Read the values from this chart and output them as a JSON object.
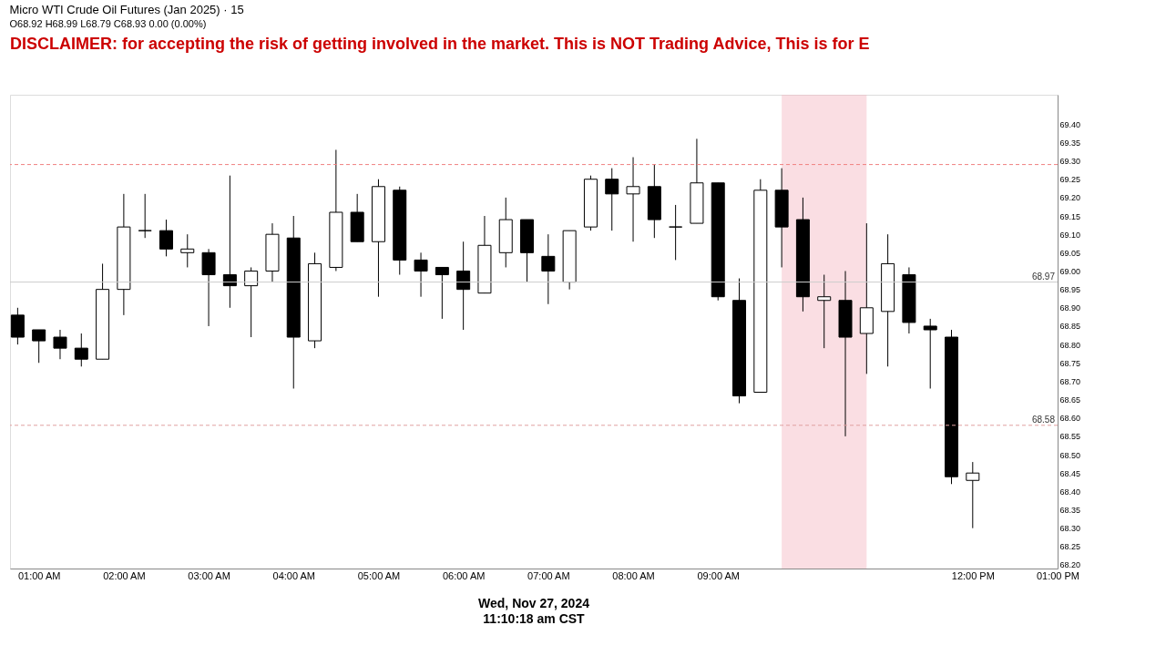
{
  "chart_data": {
    "type": "candlestick",
    "title": "Micro WTI Crude Oil Futures (Jan 2025) · 15",
    "subtitle": "O68.92 H68.99 L68.79 C68.93 0.00 (0.00%)",
    "x": [
      0.75,
      1.0,
      1.25,
      1.5,
      1.75,
      2.0,
      2.25,
      2.5,
      2.75,
      3.0,
      3.25,
      3.5,
      3.75,
      4.0,
      4.25,
      4.5,
      4.75,
      5.0,
      5.25,
      5.5,
      5.75,
      6.0,
      6.25,
      6.5,
      6.75,
      7.0,
      7.25,
      7.5,
      7.75,
      8.0,
      8.25,
      8.5,
      8.75,
      9.0,
      9.25,
      9.5,
      9.75,
      10.0,
      10.25,
      10.5,
      10.75,
      11.0,
      11.25,
      11.5,
      11.75,
      12.0
    ],
    "ohlc": [
      [
        68.88,
        68.9,
        68.8,
        68.82
      ],
      [
        68.84,
        68.84,
        68.75,
        68.81
      ],
      [
        68.82,
        68.84,
        68.76,
        68.79
      ],
      [
        68.79,
        68.83,
        68.74,
        68.76
      ],
      [
        68.76,
        69.02,
        68.76,
        68.95
      ],
      [
        68.95,
        69.21,
        68.88,
        69.12
      ],
      [
        69.11,
        69.21,
        69.09,
        69.11
      ],
      [
        69.11,
        69.14,
        69.04,
        69.06
      ],
      [
        69.05,
        69.1,
        69.01,
        69.06
      ],
      [
        69.05,
        69.06,
        68.85,
        68.99
      ],
      [
        68.99,
        69.26,
        68.9,
        68.96
      ],
      [
        68.96,
        69.01,
        68.82,
        69.0
      ],
      [
        69.0,
        69.13,
        68.97,
        69.1
      ],
      [
        69.09,
        69.15,
        68.68,
        68.82
      ],
      [
        68.81,
        69.05,
        68.79,
        69.02
      ],
      [
        69.01,
        69.33,
        69.0,
        69.16
      ],
      [
        69.16,
        69.21,
        69.08,
        69.08
      ],
      [
        69.08,
        69.25,
        68.93,
        69.23
      ],
      [
        69.22,
        69.23,
        68.99,
        69.03
      ],
      [
        69.03,
        69.05,
        68.93,
        69.0
      ],
      [
        69.01,
        69.01,
        68.87,
        68.99
      ],
      [
        69.0,
        69.08,
        68.84,
        68.95
      ],
      [
        68.94,
        69.15,
        68.94,
        69.07
      ],
      [
        69.05,
        69.2,
        69.01,
        69.14
      ],
      [
        69.14,
        69.14,
        68.97,
        69.05
      ],
      [
        69.04,
        69.1,
        68.91,
        69.0
      ],
      [
        68.97,
        69.11,
        68.95,
        69.11
      ],
      [
        69.12,
        69.26,
        69.11,
        69.25
      ],
      [
        69.25,
        69.28,
        69.11,
        69.21
      ],
      [
        69.21,
        69.31,
        69.08,
        69.23
      ],
      [
        69.23,
        69.29,
        69.09,
        69.14
      ],
      [
        69.12,
        69.18,
        69.03,
        69.12
      ],
      [
        69.13,
        69.36,
        69.13,
        69.24
      ],
      [
        69.24,
        69.24,
        68.92,
        68.93
      ],
      [
        68.92,
        68.98,
        68.64,
        68.66
      ],
      [
        68.67,
        69.25,
        68.67,
        69.22
      ],
      [
        69.22,
        69.28,
        69.01,
        69.12
      ],
      [
        69.14,
        69.2,
        68.89,
        68.93
      ],
      [
        68.92,
        68.99,
        68.79,
        68.93
      ],
      [
        68.92,
        69.0,
        68.55,
        68.82
      ],
      [
        68.83,
        69.13,
        68.72,
        68.9
      ],
      [
        68.89,
        69.1,
        68.74,
        69.02
      ],
      [
        68.99,
        69.01,
        68.83,
        68.86
      ],
      [
        68.85,
        68.87,
        68.68,
        68.84
      ],
      [
        68.82,
        68.84,
        68.42,
        68.44
      ],
      [
        68.43,
        68.48,
        68.3,
        68.45
      ]
    ],
    "xlim": [
      0.66,
      13.0
    ],
    "xticks": [
      {
        "value": 1,
        "label": "01:00 AM"
      },
      {
        "value": 2,
        "label": "02:00 AM"
      },
      {
        "value": 3,
        "label": "03:00 AM"
      },
      {
        "value": 4,
        "label": "04:00 AM"
      },
      {
        "value": 5,
        "label": "05:00 AM"
      },
      {
        "value": 6,
        "label": "06:00 AM"
      },
      {
        "value": 7,
        "label": "07:00 AM"
      },
      {
        "value": 8,
        "label": "08:00 AM"
      },
      {
        "value": 9,
        "label": "09:00 AM"
      },
      {
        "value": 12,
        "label": "12:00 PM"
      },
      {
        "value": 13,
        "label": "01:00 PM"
      }
    ],
    "ylim": [
      68.19,
      69.48
    ],
    "yticks": [
      {
        "value": 68.2,
        "label": "68.20"
      },
      68.25,
      {
        "value": 68.3,
        "label": "68.30"
      },
      68.35,
      {
        "value": 68.4,
        "label": "68.40"
      },
      68.45,
      {
        "value": 68.5,
        "label": "68.50"
      },
      68.55,
      {
        "value": 68.6,
        "label": "68.60"
      },
      68.65,
      {
        "value": 68.7,
        "label": "68.70"
      },
      68.75,
      {
        "value": 68.8,
        "label": "68.80"
      },
      68.85,
      {
        "value": 68.9,
        "label": "68.90"
      },
      68.95,
      {
        "value": 69.0,
        "label": "69.00"
      },
      69.05,
      {
        "value": 69.1,
        "label": "69.10"
      },
      69.15,
      {
        "value": 69.2,
        "label": "69.20"
      },
      69.25,
      {
        "value": 69.3,
        "label": "69.30"
      },
      69.35,
      {
        "value": 69.4,
        "label": "69.40"
      }
    ],
    "bands": [
      {
        "axis": "x",
        "from": 9.75,
        "to": 10.75,
        "label": null,
        "color": "#f4b6c2"
      }
    ],
    "ref_lines": [
      {
        "axis": "y",
        "value": 69.29,
        "label": null,
        "color": "#f08080",
        "line_style": "dashed"
      },
      {
        "axis": "y",
        "value": 68.97,
        "label": "68.97",
        "color": "#cccccc",
        "line_style": "solid"
      },
      {
        "axis": "y",
        "value": 68.58,
        "label": "68.58",
        "color": "#e0a0a0",
        "line_style": "dashed"
      }
    ],
    "grid": false,
    "annotations": [
      "DISCLAIMER: for accepting the risk of getting involved in the market. This is NOT Trading Advice, This is for E",
      "Wed, Nov 27, 2024",
      "11:10:18 am CST"
    ]
  }
}
